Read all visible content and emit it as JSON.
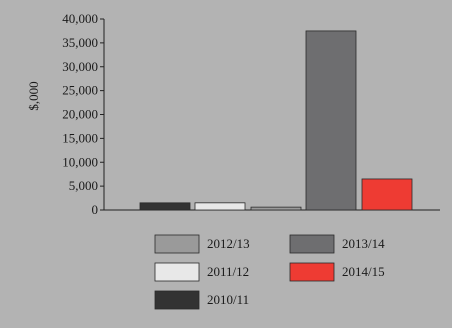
{
  "chart_data": {
    "type": "bar",
    "ylabel": "$,000",
    "ylim": [
      0,
      40000
    ],
    "yticks": [
      0,
      5000,
      10000,
      15000,
      20000,
      25000,
      30000,
      35000,
      40000
    ],
    "ytick_labels": [
      "0",
      "5,000",
      "10,000",
      "15,000",
      "20,000",
      "25,000",
      "30,000",
      "35,000",
      "40,000"
    ],
    "grid": false,
    "legend_placement": "bottom",
    "series": [
      {
        "name": "2010/11",
        "value": 1500,
        "color": "#333333"
      },
      {
        "name": "2011/12",
        "value": 1500,
        "color": "#e8e8e8"
      },
      {
        "name": "2012/13",
        "value": 600,
        "color": "#9a9a9a"
      },
      {
        "name": "2013/14",
        "value": 37500,
        "color": "#6e6e70"
      },
      {
        "name": "2014/15",
        "value": 6500,
        "color": "#ee3b33"
      }
    ],
    "legend_order": [
      "2012/13",
      "2013/14",
      "2011/12",
      "2014/15",
      "2010/11"
    ]
  }
}
